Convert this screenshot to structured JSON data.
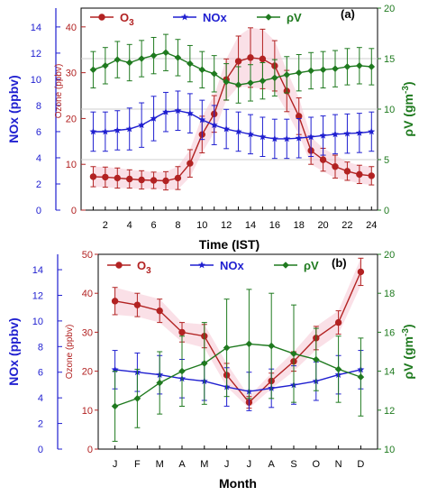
{
  "chart_data": [
    {
      "type": "line",
      "panel_label": "(a)",
      "xlabel": "Time (IST)",
      "x": [
        1,
        2,
        3,
        4,
        5,
        6,
        7,
        8,
        9,
        10,
        11,
        12,
        13,
        14,
        15,
        16,
        17,
        18,
        19,
        20,
        21,
        22,
        23,
        24
      ],
      "xticks": [
        2,
        4,
        6,
        8,
        10,
        12,
        14,
        16,
        18,
        20,
        22,
        24
      ],
      "xlim": [
        0,
        24.5
      ],
      "axes": {
        "nox": {
          "label": "NOx (ppbv)",
          "ticks": [
            0,
            2,
            4,
            6,
            8,
            10,
            12,
            14
          ],
          "range": [
            0,
            15.44
          ],
          "color": "#1f1fd0"
        },
        "ozone": {
          "label": "Ozone (ppbv)",
          "ticks": [
            0,
            10,
            20,
            30,
            40
          ],
          "range": [
            0,
            44.1
          ],
          "color": "#b22222"
        },
        "rhov": {
          "label_main": "ρV (gm",
          "label_sup": "-3",
          "label_close": ")",
          "ticks": [
            0,
            5,
            10,
            15,
            20
          ],
          "range": [
            0,
            20
          ],
          "color": "#1f7a1f"
        }
      },
      "legend": [
        {
          "text": "O",
          "sub": "3",
          "color": "#b22222",
          "marker": "circle"
        },
        {
          "text": "NOx",
          "sub": "",
          "color": "#1f1fd0",
          "marker": "star"
        },
        {
          "text": "ρV",
          "sub": "",
          "color": "#1f7a1f",
          "marker": "diamond"
        }
      ],
      "series": [
        {
          "name": "O3",
          "axis": "ozone",
          "color": "#b22222",
          "marker": "circle",
          "values": [
            7.3,
            7.2,
            7.0,
            6.8,
            6.6,
            6.5,
            6.4,
            7.0,
            10.2,
            16.5,
            21.0,
            28.5,
            32.5,
            33.3,
            33.0,
            31.5,
            26.0,
            20.5,
            13.0,
            11.0,
            9.5,
            8.5,
            7.8,
            7.5
          ],
          "errors": [
            2.2,
            2.2,
            2.2,
            2.0,
            2.0,
            1.8,
            2.0,
            2.5,
            3.0,
            4.0,
            4.0,
            4.5,
            5.5,
            6.5,
            6.5,
            5.5,
            4.5,
            4.0,
            3.0,
            2.5,
            2.5,
            2.0,
            2.0,
            2.0
          ]
        },
        {
          "name": "NOx",
          "axis": "nox",
          "color": "#1f1fd0",
          "marker": "star",
          "values": [
            6.0,
            6.0,
            6.1,
            6.2,
            6.5,
            7.0,
            7.5,
            7.6,
            7.4,
            6.9,
            6.5,
            6.2,
            6.0,
            5.8,
            5.6,
            5.45,
            5.45,
            5.5,
            5.6,
            5.7,
            5.8,
            5.85,
            5.9,
            6.0
          ],
          "errors": [
            1.5,
            1.5,
            1.5,
            1.6,
            1.7,
            1.7,
            1.5,
            1.5,
            1.5,
            1.5,
            1.5,
            1.5,
            1.5,
            1.5,
            1.5,
            1.5,
            1.5,
            1.5,
            1.5,
            1.5,
            1.5,
            1.5,
            1.5,
            1.5
          ]
        },
        {
          "name": "ρV",
          "axis": "rhov",
          "color": "#1f7a1f",
          "marker": "diamond",
          "values": [
            13.9,
            14.3,
            14.9,
            14.6,
            15.0,
            15.3,
            15.6,
            15.1,
            14.5,
            13.9,
            13.5,
            12.7,
            12.4,
            12.6,
            12.8,
            13.1,
            13.4,
            13.6,
            13.8,
            13.9,
            14.0,
            14.2,
            14.3,
            14.2
          ],
          "errors": [
            1.8,
            1.8,
            1.8,
            1.8,
            1.8,
            1.8,
            1.8,
            1.8,
            1.8,
            1.8,
            1.8,
            1.8,
            1.8,
            1.8,
            1.8,
            1.8,
            1.8,
            1.8,
            1.8,
            1.8,
            1.8,
            1.8,
            1.8,
            1.8
          ]
        }
      ]
    },
    {
      "type": "line",
      "panel_label": "(b)",
      "xlabel": "Month",
      "categories": [
        "J",
        "F",
        "M",
        "A",
        "M",
        "J",
        "J",
        "A",
        "S",
        "O",
        "N",
        "D"
      ],
      "axes": {
        "nox": {
          "label": "NOx (ppbv)",
          "ticks": [
            0,
            2,
            4,
            6,
            8,
            10,
            12,
            14
          ],
          "range": [
            0,
            15.2
          ],
          "color": "#1f1fd0"
        },
        "ozone": {
          "label": "Ozone (ppbv)",
          "ticks": [
            0,
            10,
            20,
            30,
            40,
            50
          ],
          "range": [
            0,
            50
          ],
          "color": "#b22222"
        },
        "rhov": {
          "label_main": "ρV (gm",
          "label_sup": "-3",
          "label_close": ")",
          "ticks": [
            10,
            12,
            14,
            16,
            18,
            20
          ],
          "range": [
            10,
            20
          ],
          "color": "#1f7a1f"
        }
      },
      "legend": [
        {
          "text": "O",
          "sub": "3",
          "color": "#b22222",
          "marker": "circle"
        },
        {
          "text": "NOx",
          "sub": "",
          "color": "#1f1fd0",
          "marker": "star"
        },
        {
          "text": "ρV",
          "sub": "",
          "color": "#1f7a1f",
          "marker": "diamond"
        }
      ],
      "series": [
        {
          "name": "O3",
          "axis": "ozone",
          "color": "#b22222",
          "marker": "circle",
          "values": [
            38,
            37,
            35.5,
            30,
            29,
            19,
            12,
            17.5,
            22.5,
            28.5,
            32.5,
            45.5
          ],
          "errors": [
            3.5,
            3,
            3,
            2.5,
            3,
            3,
            1.5,
            2,
            2.5,
            3,
            3,
            3.5
          ]
        },
        {
          "name": "NOx",
          "axis": "nox",
          "color": "#1f1fd0",
          "marker": "star",
          "values": [
            6.2,
            6.0,
            5.8,
            5.5,
            5.3,
            4.85,
            4.5,
            4.75,
            5.0,
            5.3,
            5.8,
            6.2
          ],
          "errors": [
            1.5,
            1.5,
            1.5,
            1.5,
            1.5,
            1.5,
            1.5,
            1.5,
            1.5,
            1.5,
            1.5,
            1.5
          ]
        },
        {
          "name": "ρV",
          "axis": "rhov",
          "color": "#1f7a1f",
          "marker": "diamond",
          "values": [
            12.2,
            12.6,
            13.4,
            14.0,
            14.4,
            15.2,
            15.4,
            15.3,
            14.9,
            14.6,
            14.1,
            13.7
          ],
          "errors": [
            1.8,
            1.5,
            1.6,
            1.8,
            2.1,
            2.5,
            2.8,
            2.7,
            2.5,
            1.6,
            1.7,
            2.0
          ]
        }
      ]
    }
  ]
}
